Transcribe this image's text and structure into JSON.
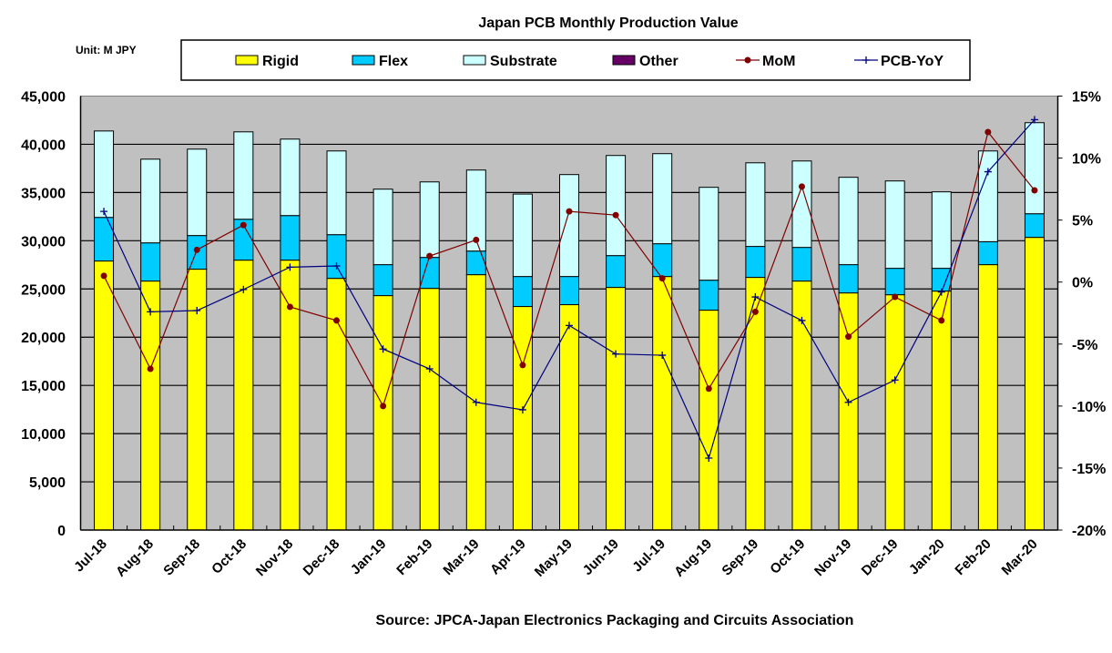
{
  "chart_data": {
    "type": "bar",
    "stacked": true,
    "title": "Japan PCB Monthly Production Value",
    "unit_label": "Unit: M JPY",
    "source": "Source: JPCA-Japan Electronics Packaging and Circuits Association",
    "categories": [
      "Jul-18",
      "Aug-18",
      "Sep-18",
      "Oct-18",
      "Nov-18",
      "Dec-18",
      "Jan-19",
      "Feb-19",
      "Mar-19",
      "Apr-19",
      "May-19",
      "Jun-19",
      "Jul-19",
      "Aug-19",
      "Sep-19",
      "Oct-19",
      "Nov-19",
      "Dec-19",
      "Jan-20",
      "Feb-20",
      "Mar-20"
    ],
    "y_left": {
      "ylim": [
        0,
        45000
      ],
      "ticks": [
        "0",
        "5,000",
        "10,000",
        "15,000",
        "20,000",
        "25,000",
        "30,000",
        "35,000",
        "40,000",
        "45,000"
      ]
    },
    "y_right": {
      "ylim": [
        -20,
        15
      ],
      "unit": "%",
      "ticks": [
        "-20%",
        "-15%",
        "-10%",
        "-5%",
        "0%",
        "5%",
        "10%",
        "15%"
      ]
    },
    "grid": true,
    "legend_position": "top",
    "plot_background": "#c0c0c0",
    "series": [
      {
        "name": "Rigid",
        "kind": "bar",
        "color": "#ffff00",
        "values": [
          27900,
          25820,
          27050,
          27990,
          27990,
          26100,
          24310,
          25060,
          26480,
          23180,
          23370,
          25160,
          26290,
          22800,
          26200,
          25820,
          24590,
          24400,
          24780,
          27520,
          30350
        ]
      },
      {
        "name": "Flex",
        "kind": "bar",
        "color": "#00ccff",
        "values": [
          4520,
          3960,
          3490,
          4240,
          4620,
          4530,
          3210,
          3210,
          2450,
          3110,
          2920,
          3300,
          3400,
          3110,
          3210,
          3490,
          2930,
          2740,
          2360,
          2380,
          2450
        ]
      },
      {
        "name": "Substrate",
        "kind": "bar",
        "color": "#ccffff",
        "values": [
          8960,
          8680,
          8960,
          9060,
          7930,
          8680,
          7830,
          7830,
          8400,
          8550,
          10570,
          10380,
          9340,
          9630,
          8670,
          8960,
          9060,
          9060,
          7930,
          9410,
          9440
        ]
      },
      {
        "name": "Other",
        "kind": "bar",
        "color": "#660066",
        "values": [
          0,
          0,
          0,
          0,
          0,
          0,
          0,
          0,
          0,
          0,
          0,
          0,
          0,
          0,
          0,
          0,
          0,
          0,
          0,
          0,
          0
        ]
      },
      {
        "name": "MoM",
        "kind": "line",
        "axis": "right",
        "color": "#800000",
        "marker": "circle",
        "values": [
          0.5,
          -7.0,
          2.6,
          4.6,
          -2.0,
          -3.1,
          -10.0,
          2.1,
          3.4,
          -6.7,
          5.7,
          5.4,
          0.3,
          -8.6,
          -2.4,
          7.7,
          -4.4,
          -1.2,
          -3.1,
          12.1,
          7.4
        ]
      },
      {
        "name": "PCB-YoY",
        "kind": "line",
        "axis": "right",
        "color": "#000080",
        "marker": "plus",
        "values": [
          5.7,
          -2.4,
          -2.3,
          -0.6,
          1.2,
          1.3,
          -5.4,
          -7.0,
          -9.7,
          -10.3,
          -3.5,
          -5.8,
          -5.9,
          -14.2,
          -1.2,
          -3.1,
          -9.7,
          -7.9,
          -0.8,
          8.9,
          13.1
        ]
      }
    ]
  }
}
